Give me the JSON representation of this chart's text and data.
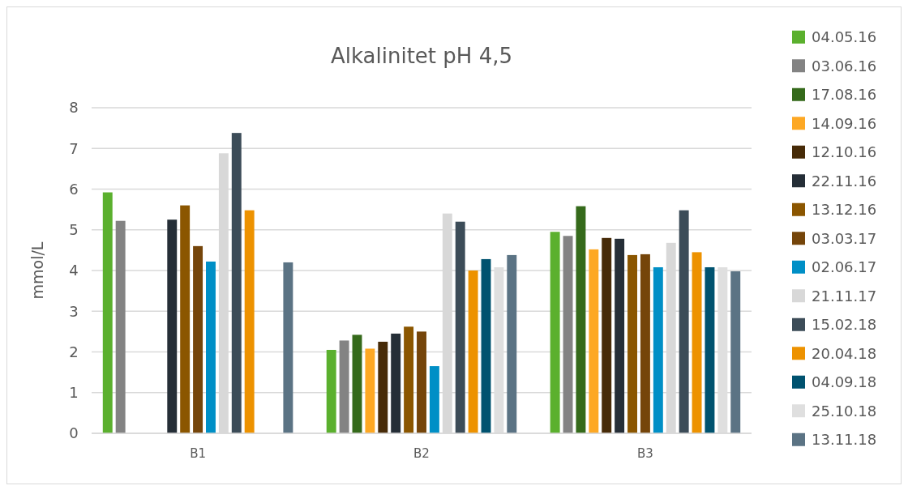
{
  "chart_data": {
    "type": "bar",
    "title": "Alkalinitet pH 4,5",
    "ylabel": "mmol/L",
    "categories": [
      "B1",
      "B2",
      "B3"
    ],
    "ylim": [
      0,
      8
    ],
    "yticks": [
      0,
      1,
      2,
      3,
      4,
      5,
      6,
      7,
      8
    ],
    "grid": "y",
    "legend": "right",
    "series": [
      {
        "name": "04.05.16",
        "color": "#5bb02e",
        "values": [
          5.92,
          2.05,
          4.95
        ]
      },
      {
        "name": "03.06.16",
        "color": "#838383",
        "values": [
          5.22,
          2.28,
          4.85
        ]
      },
      {
        "name": "17.08.16",
        "color": "#356a1b",
        "values": [
          null,
          2.42,
          5.58
        ]
      },
      {
        "name": "14.09.16",
        "color": "#fda824",
        "values": [
          null,
          2.08,
          4.52
        ]
      },
      {
        "name": "12.10.16",
        "color": "#472b08",
        "values": [
          null,
          2.25,
          4.8
        ]
      },
      {
        "name": "22.11.16",
        "color": "#252e37",
        "values": [
          5.25,
          2.45,
          4.78
        ]
      },
      {
        "name": "13.12.16",
        "color": "#8b5600",
        "values": [
          5.6,
          2.62,
          4.38
        ]
      },
      {
        "name": "03.03.17",
        "color": "#75450a",
        "values": [
          4.6,
          2.5,
          4.4
        ]
      },
      {
        "name": "02.06.17",
        "color": "#008fc6",
        "values": [
          4.22,
          1.65,
          4.08
        ]
      },
      {
        "name": "21.11.17",
        "color": "#d8d8d8",
        "values": [
          6.88,
          5.4,
          4.68
        ]
      },
      {
        "name": "15.02.18",
        "color": "#3c4c58",
        "values": [
          7.38,
          5.2,
          5.48
        ]
      },
      {
        "name": "20.04.18",
        "color": "#ed9200",
        "values": [
          5.48,
          4.0,
          4.45
        ]
      },
      {
        "name": "04.09.18",
        "color": "#00526f",
        "values": [
          null,
          4.28,
          4.08
        ]
      },
      {
        "name": "25.10.18",
        "color": "#dfdfdf",
        "values": [
          null,
          4.08,
          4.08
        ]
      },
      {
        "name": "13.11.18",
        "color": "#5b7384",
        "values": [
          4.2,
          4.38,
          3.98
        ]
      }
    ]
  }
}
